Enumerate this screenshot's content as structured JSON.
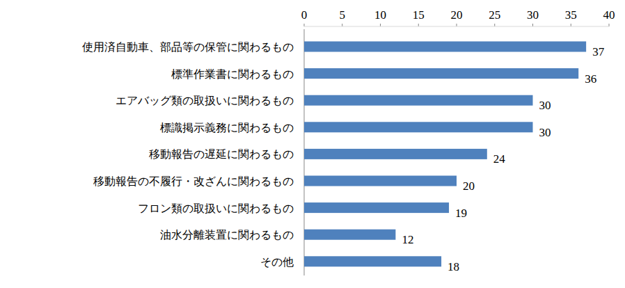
{
  "chart_data": {
    "type": "bar",
    "orientation": "horizontal",
    "categories": [
      "使用済自動車、部品等の保管に関わるもの",
      "標準作業書に関わるもの",
      "エアバッグ類の取扱いに関わるもの",
      "標識掲示義務に関わるもの",
      "移動報告の遅延に関わるもの",
      "移動報告の不履行・改ざんに関わるもの",
      "フロン類の取扱いに関わるもの",
      "油水分離装置に関わるもの",
      "その他"
    ],
    "values": [
      37,
      36,
      30,
      30,
      24,
      20,
      19,
      12,
      18
    ],
    "color": "#4f81bd",
    "xlim": [
      0,
      40
    ],
    "xticks": [
      0,
      5,
      10,
      15,
      20,
      25,
      30,
      35,
      40
    ],
    "grid": false,
    "data_labels": true
  }
}
